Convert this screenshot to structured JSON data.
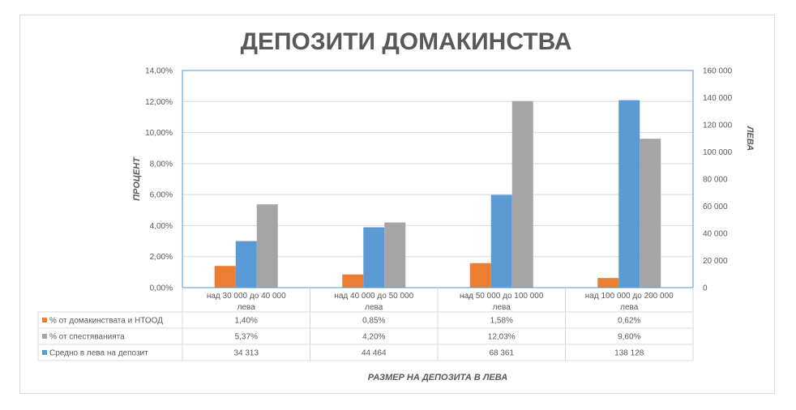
{
  "chart_data": {
    "type": "bar",
    "title": "ДЕПОЗИТИ ДОМАКИНСТВА",
    "xlabel": "РАЗМЕР НА ДЕПОЗИТА В ЛЕВА",
    "ylabel_left": "ПРОЦЕНТ",
    "ylabel_right": "ЛЕВА",
    "categories": [
      [
        "над 30 000 до 40 000",
        "лева"
      ],
      [
        "над 40 000 до 50 000",
        "лева"
      ],
      [
        "над 50 000 до 100 000",
        "лева"
      ],
      [
        "над 100 000 до 200 000",
        "лева"
      ]
    ],
    "ylim_left": [
      0,
      14
    ],
    "ylim_right": [
      0,
      160000
    ],
    "left_ticks": [
      "0,00%",
      "2,00%",
      "4,00%",
      "6,00%",
      "8,00%",
      "10,00%",
      "12,00%",
      "14,00%"
    ],
    "right_ticks": [
      "0",
      "20 000",
      "40 000",
      "60 000",
      "80 000",
      "100 000",
      "120 000",
      "140 000",
      "160 000"
    ],
    "grid": true,
    "legend_position": "data-table",
    "series": [
      {
        "name": "% от домакинствата и НТООД",
        "axis": "left",
        "color": "#ed7d31",
        "values": [
          1.4,
          0.85,
          1.58,
          0.62
        ],
        "labels": [
          "1,40%",
          "0,85%",
          "1,58%",
          "0,62%"
        ]
      },
      {
        "name": "Средно в лева на депозит",
        "axis": "right",
        "color": "#5b9bd5",
        "values": [
          34313,
          44464,
          68361,
          138128
        ],
        "labels": [
          "34 313",
          "44 464",
          "68 361",
          "138 128"
        ]
      },
      {
        "name": "% от спестяванията",
        "axis": "left",
        "color": "#a5a5a5",
        "values": [
          5.37,
          4.2,
          12.03,
          9.6
        ],
        "labels": [
          "5,37%",
          "4,20%",
          "12,03%",
          "9,60%"
        ]
      }
    ],
    "table_rows": [
      {
        "name": "% от домакинствата и НТООД",
        "color": "#ed7d31",
        "labels": [
          "1,40%",
          "0,85%",
          "1,58%",
          "0,62%"
        ]
      },
      {
        "name": "% от спестяванията",
        "color": "#a5a5a5",
        "labels": [
          "5,37%",
          "4,20%",
          "12,03%",
          "9,60%"
        ]
      },
      {
        "name": "Средно в лева на депозит",
        "color": "#5b9bd5",
        "labels": [
          "34 313",
          "44 464",
          "68 361",
          "138 128"
        ]
      }
    ]
  }
}
